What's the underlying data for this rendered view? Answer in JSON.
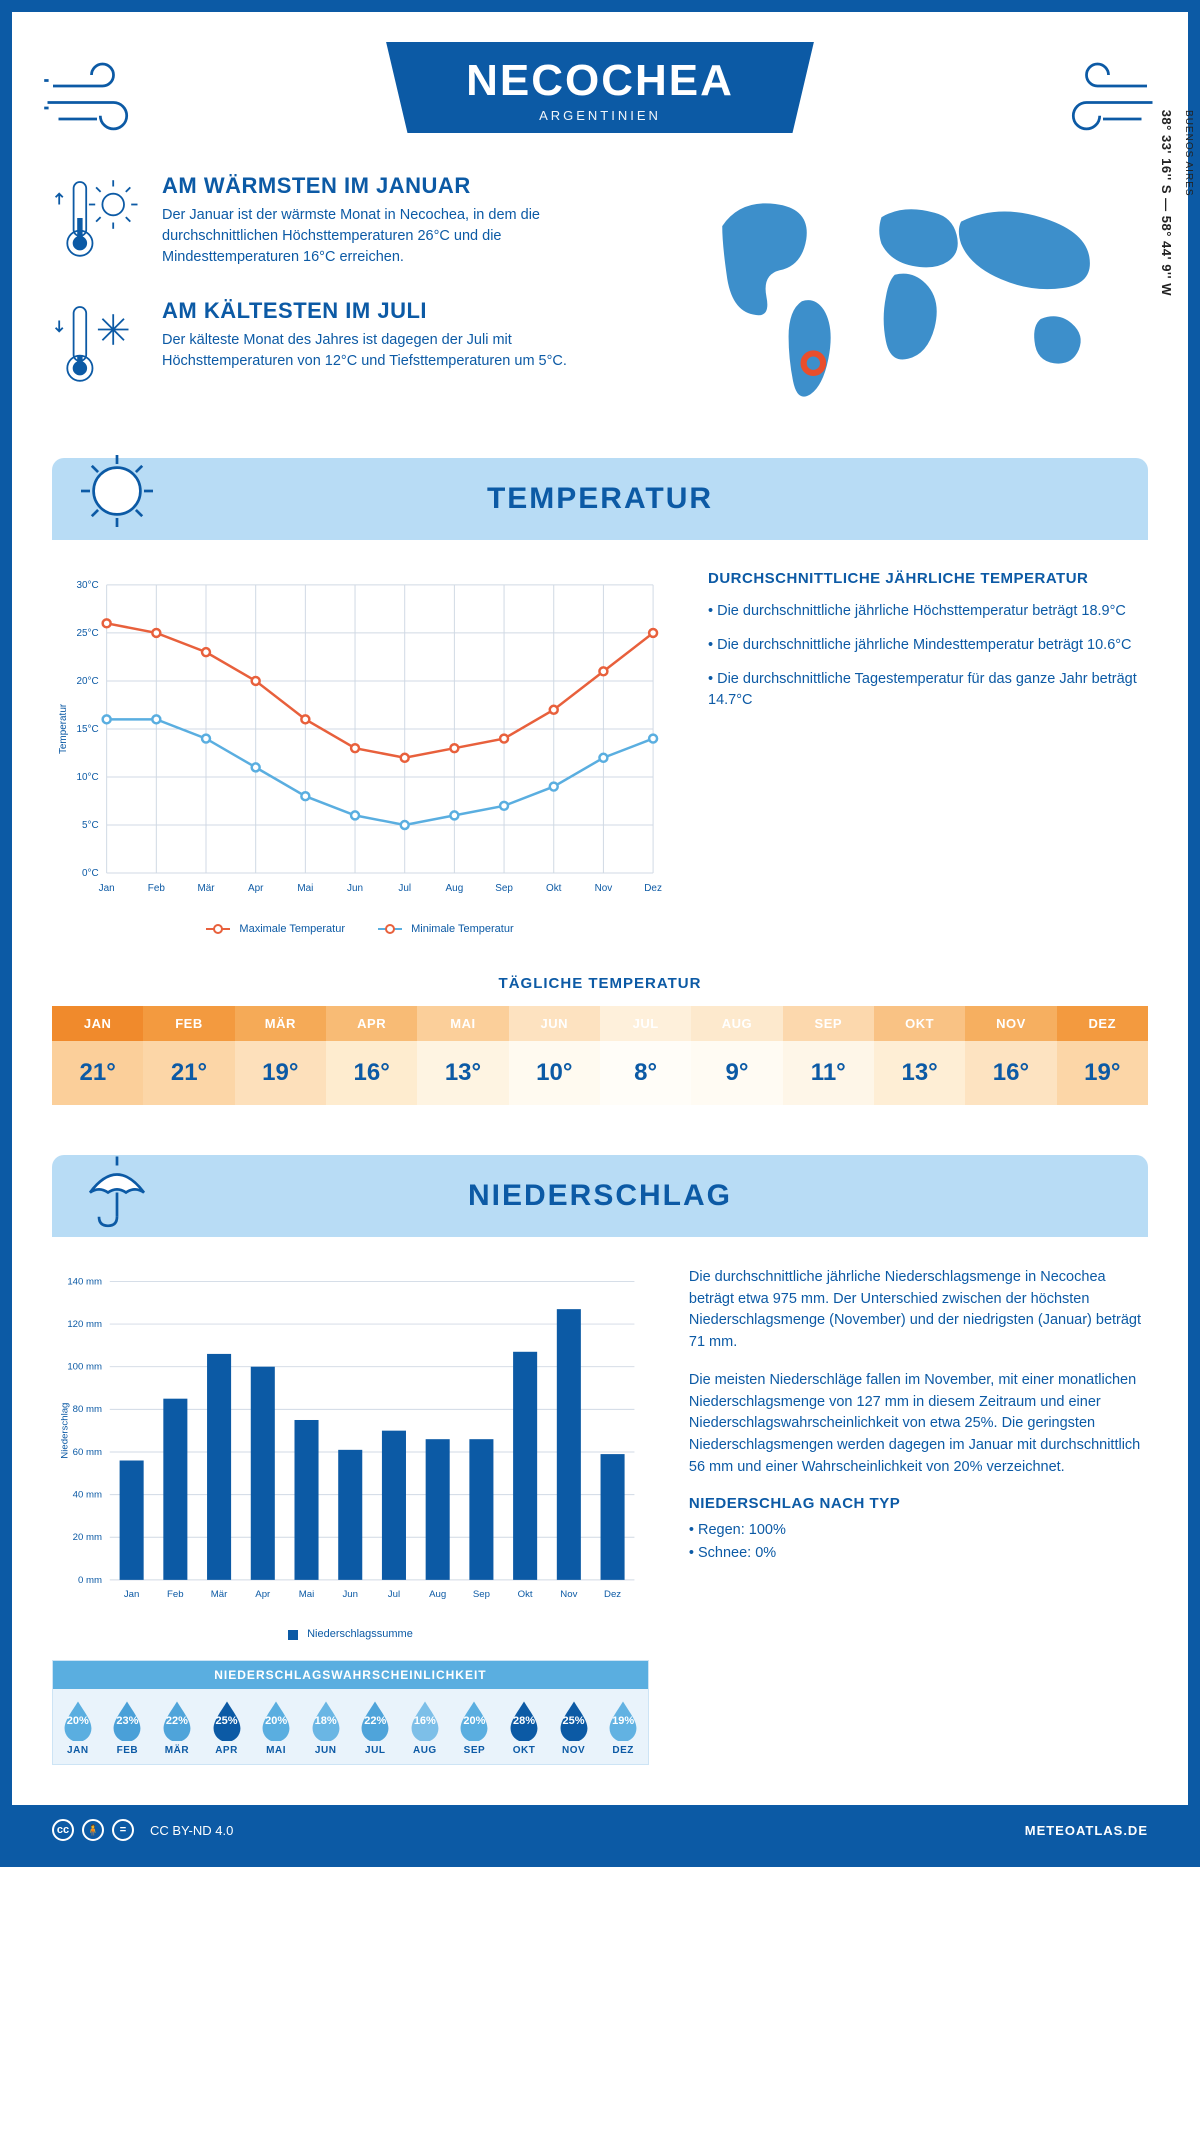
{
  "header": {
    "title": "NECOCHEA",
    "subtitle": "ARGENTINIEN"
  },
  "location": {
    "coords": "38° 33' 16'' S — 58° 44' 9'' W",
    "timezone": "BUENOS AIRES",
    "marker_color": "#e94e2c"
  },
  "intro": {
    "warm": {
      "title": "AM WÄRMSTEN IM JANUAR",
      "text": "Der Januar ist der wärmste Monat in Necochea, in dem die durchschnittlichen Höchsttemperaturen 26°C und die Mindesttemperaturen 16°C erreichen."
    },
    "cold": {
      "title": "AM KÄLTESTEN IM JULI",
      "text": "Der kälteste Monat des Jahres ist dagegen der Juli mit Höchsttemperaturen von 12°C und Tiefsttemperaturen um 5°C."
    }
  },
  "temperature_section": {
    "banner": "TEMPERATUR",
    "chart": {
      "months": [
        "Jan",
        "Feb",
        "Mär",
        "Apr",
        "Mai",
        "Jun",
        "Jul",
        "Aug",
        "Sep",
        "Okt",
        "Nov",
        "Dez"
      ],
      "max": [
        26,
        25,
        23,
        20,
        16,
        13,
        12,
        13,
        14,
        17,
        21,
        25
      ],
      "min": [
        16,
        16,
        14,
        11,
        8,
        6,
        5,
        6,
        7,
        9,
        12,
        14
      ],
      "max_color": "#e8603c",
      "min_color": "#5aaee0",
      "y_label": "Temperatur",
      "y_min": 0,
      "y_max": 30,
      "y_step": 5,
      "grid_color": "#d0d9e4",
      "background": "#ffffff"
    },
    "legend": {
      "max": "Maximale Temperatur",
      "min": "Minimale Temperatur"
    },
    "side": {
      "title": "DURCHSCHNITTLICHE JÄHRLICHE TEMPERATUR",
      "b1": "• Die durchschnittliche jährliche Höchsttemperatur beträgt 18.9°C",
      "b2": "• Die durchschnittliche jährliche Mindesttemperatur beträgt 10.6°C",
      "b3": "• Die durchschnittliche Tagestemperatur für das ganze Jahr beträgt 14.7°C"
    },
    "daily": {
      "title": "TÄGLICHE TEMPERATUR",
      "months": [
        "JAN",
        "FEB",
        "MÄR",
        "APR",
        "MAI",
        "JUN",
        "JUL",
        "AUG",
        "SEP",
        "OKT",
        "NOV",
        "DEZ"
      ],
      "values": [
        "21°",
        "21°",
        "19°",
        "16°",
        "13°",
        "10°",
        "8°",
        "9°",
        "11°",
        "13°",
        "16°",
        "19°"
      ],
      "header_colors": [
        "#f08a2c",
        "#f39a3f",
        "#f5aa57",
        "#f8bb75",
        "#fbcf9a",
        "#fde2c0",
        "#fef0db",
        "#fde9cd",
        "#fcd8ad",
        "#f9c284",
        "#f6af60",
        "#f39a3f"
      ],
      "cell_colors": [
        "#fbcf9a",
        "#fcd6a7",
        "#fde0bb",
        "#feeccf",
        "#fef4e2",
        "#fffaf0",
        "#fffdf8",
        "#fffbf3",
        "#fef6e8",
        "#feeed5",
        "#fde3c1",
        "#fcd6a7"
      ]
    }
  },
  "precip_section": {
    "banner": "NIEDERSCHLAG",
    "chart": {
      "months": [
        "Jan",
        "Feb",
        "Mär",
        "Apr",
        "Mai",
        "Jun",
        "Jul",
        "Aug",
        "Sep",
        "Okt",
        "Nov",
        "Dez"
      ],
      "values": [
        56,
        85,
        106,
        100,
        75,
        61,
        70,
        66,
        66,
        107,
        127,
        59
      ],
      "bar_color": "#0c5aa5",
      "y_label": "Niederschlag",
      "y_min": 0,
      "y_max": 140,
      "y_step": 20,
      "grid_color": "#d0d9e4",
      "legend": "Niederschlagssumme"
    },
    "text": {
      "p1": "Die durchschnittliche jährliche Niederschlagsmenge in Necochea beträgt etwa 975 mm. Der Unterschied zwischen der höchsten Niederschlagsmenge (November) und der niedrigsten (Januar) beträgt 71 mm.",
      "p2": "Die meisten Niederschläge fallen im November, mit einer monatlichen Niederschlagsmenge von 127 mm in diesem Zeitraum und einer Niederschlagswahrscheinlichkeit von etwa 25%. Die geringsten Niederschlagsmengen werden dagegen im Januar mit durchschnittlich 56 mm und einer Wahrscheinlichkeit von 20% verzeichnet.",
      "type_title": "NIEDERSCHLAG NACH TYP",
      "type_rain": "• Regen: 100%",
      "type_snow": "• Schnee: 0%"
    },
    "probability": {
      "title": "NIEDERSCHLAGSWAHRSCHEINLICHKEIT",
      "months": [
        "JAN",
        "FEB",
        "MÄR",
        "APR",
        "MAI",
        "JUN",
        "JUL",
        "AUG",
        "SEP",
        "OKT",
        "NOV",
        "DEZ"
      ],
      "values": [
        "20%",
        "23%",
        "22%",
        "25%",
        "20%",
        "18%",
        "22%",
        "16%",
        "20%",
        "28%",
        "25%",
        "19%"
      ],
      "colors": [
        "#5aaee0",
        "#4aa0d8",
        "#4fa4da",
        "#0c5aa5",
        "#5aaee0",
        "#6ab6e4",
        "#4fa4da",
        "#7dbfe8",
        "#5aaee0",
        "#0c5aa5",
        "#0c5aa5",
        "#62b2e2"
      ]
    }
  },
  "footer": {
    "license": "CC BY-ND 4.0",
    "site": "METEOATLAS.DE"
  },
  "colors": {
    "primary": "#0c5aa5",
    "light_blue": "#b8dcf5",
    "mid_blue": "#5aaee0"
  }
}
